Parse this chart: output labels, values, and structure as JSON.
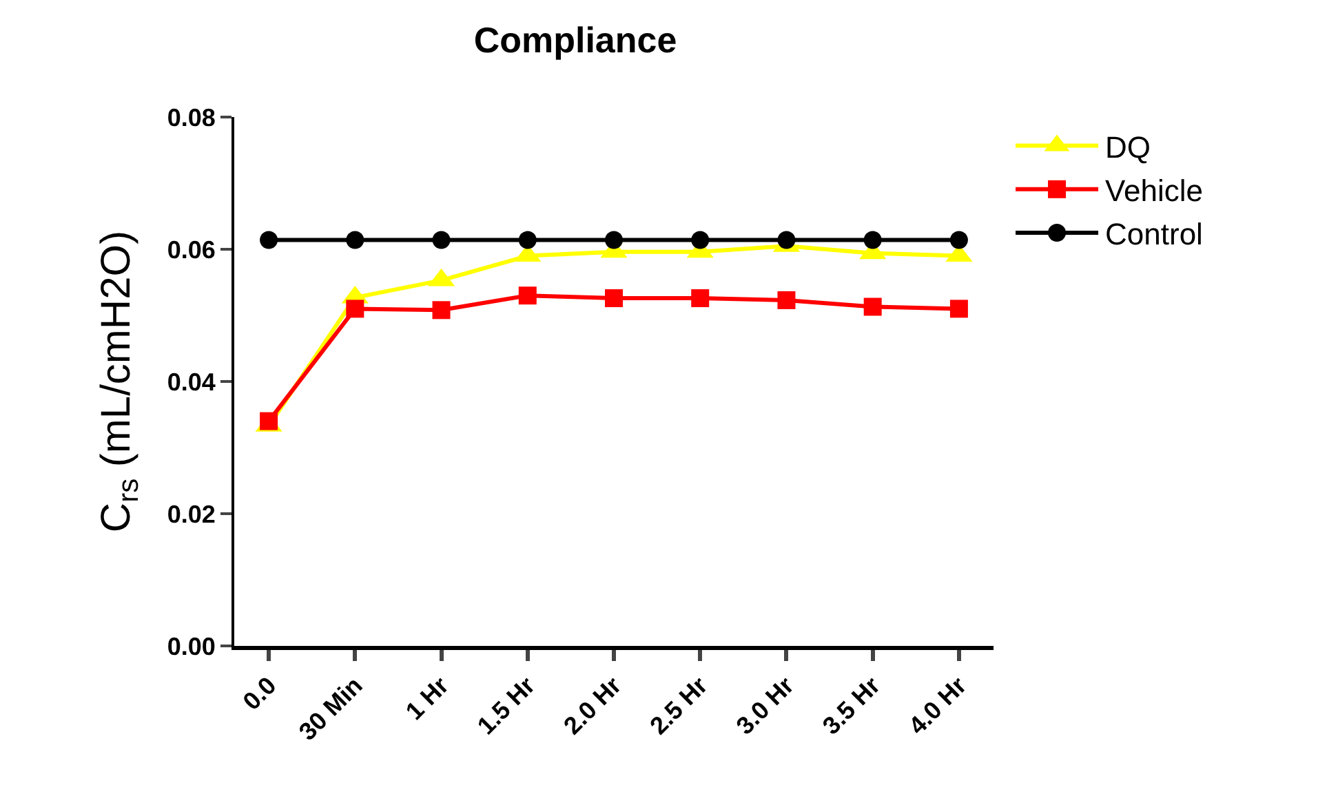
{
  "chart_data": {
    "type": "line",
    "title": "Compliance",
    "ylabel": "C$_{rs}$ (mL/cmH2O)",
    "categories": [
      "0.0",
      "30 Min",
      "1 Hr",
      "1.5 Hr",
      "2.0 Hr",
      "2.5 Hr",
      "3.0 Hr",
      "3.5 Hr",
      "4.0 Hr"
    ],
    "series": [
      {
        "name": "DQ",
        "color": "#ffff00",
        "marker": "triangle",
        "values": [
          0.0333,
          0.0527,
          0.0553,
          0.059,
          0.0596,
          0.0596,
          0.0605,
          0.0594,
          0.059
        ]
      },
      {
        "name": "Vehicle",
        "color": "#ff0000",
        "marker": "square",
        "values": [
          0.034,
          0.051,
          0.0508,
          0.053,
          0.0526,
          0.0526,
          0.0523,
          0.0513,
          0.051
        ]
      },
      {
        "name": "Control",
        "color": "#000000",
        "marker": "circle",
        "values": [
          0.0614,
          0.0614,
          0.0614,
          0.0614,
          0.0614,
          0.0614,
          0.0614,
          0.0614,
          0.0614
        ]
      }
    ],
    "ylim": [
      0,
      0.08
    ],
    "yticks": [
      {
        "value": 0,
        "label": "0.00"
      },
      {
        "value": 0.02,
        "label": "0.02"
      },
      {
        "value": 0.04,
        "label": "0.04"
      },
      {
        "value": 0.06,
        "label": "0.06"
      },
      {
        "value": 0.08,
        "label": "0.08"
      }
    ],
    "grid": false,
    "legend": "top right",
    "line_style": "solid"
  }
}
